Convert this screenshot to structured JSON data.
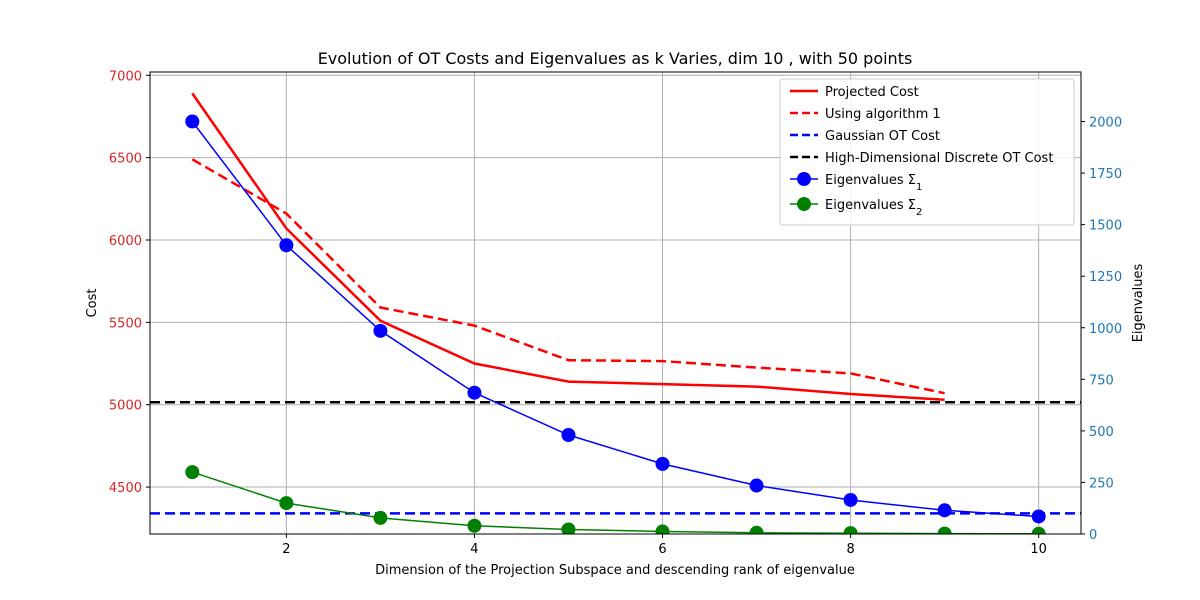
{
  "chart_data": {
    "type": "line",
    "title": "Evolution of OT Costs and Eigenvalues as k Varies, dim 10 , with 50 points",
    "xlabel": "Dimension of the Projection Subspace and descending rank of eigenvalue",
    "ylabel_left": "Cost",
    "ylabel_right": "Eigenvalues",
    "x_ticks": [
      2,
      4,
      6,
      8,
      10
    ],
    "y_left_ticks": [
      4500,
      5000,
      5500,
      6000,
      6500,
      7000
    ],
    "y_right_ticks": [
      0,
      250,
      500,
      750,
      1000,
      1250,
      1500,
      1750,
      2000
    ],
    "xlim": [
      0.55,
      10.45
    ],
    "ylim_left": [
      4215,
      7020
    ],
    "ylim_right": [
      0,
      2240
    ],
    "grid": true,
    "legend_position": "top-right",
    "colors": {
      "left_axis": "#d62728",
      "right_axis": "#1f77b4"
    },
    "series": [
      {
        "name": "Projected Cost",
        "axis": "left",
        "style": "solid",
        "color": "#ff0000",
        "marker": false,
        "x": [
          1,
          2,
          3,
          4,
          5,
          6,
          7,
          8,
          9
        ],
        "y": [
          6890,
          6070,
          5510,
          5250,
          5140,
          5125,
          5110,
          5065,
          5030
        ]
      },
      {
        "name": "Using algorithm 1",
        "axis": "left",
        "style": "dashed",
        "color": "#ff0000",
        "marker": false,
        "x": [
          1,
          2,
          3,
          4,
          5,
          6,
          7,
          8,
          9
        ],
        "y": [
          6490,
          6160,
          5590,
          5480,
          5270,
          5265,
          5225,
          5190,
          5070
        ]
      },
      {
        "name": "Gaussian OT Cost",
        "axis": "left",
        "style": "dashed",
        "color": "#0000ff",
        "marker": false,
        "hline": 4340
      },
      {
        "name": "High-Dimensional Discrete OT Cost",
        "axis": "left",
        "style": "dashed",
        "color": "#000000",
        "marker": false,
        "hline": 5015
      },
      {
        "name": "Eigenvalues Σ",
        "name_sub": "1",
        "axis": "right",
        "style": "solid",
        "color": "#0000ff",
        "marker": true,
        "x": [
          1,
          2,
          3,
          4,
          5,
          6,
          7,
          8,
          9,
          10
        ],
        "y": [
          2000,
          1400,
          985,
          685,
          480,
          340,
          235,
          165,
          115,
          85
        ]
      },
      {
        "name": "Eigenvalues Σ",
        "name_sub": "2",
        "axis": "right",
        "style": "solid",
        "color": "#008000",
        "marker": true,
        "x": [
          1,
          2,
          3,
          4,
          5,
          6,
          7,
          8,
          9,
          10
        ],
        "y": [
          300,
          150,
          78,
          40,
          22,
          12,
          6,
          4,
          2,
          1
        ]
      }
    ]
  }
}
